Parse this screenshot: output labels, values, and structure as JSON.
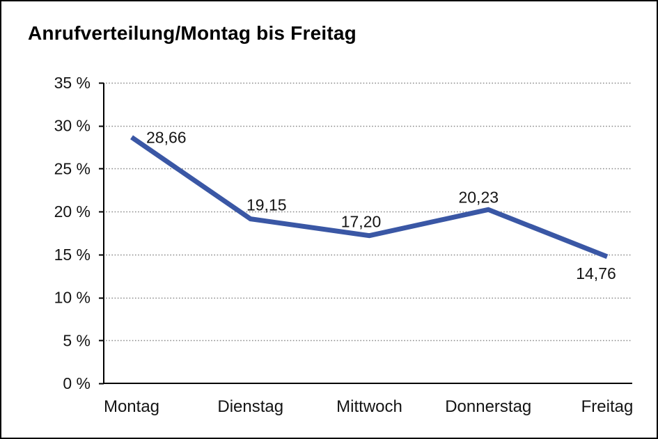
{
  "page": {
    "background": "#ffffff",
    "frame_border_color": "#000000"
  },
  "header": {
    "title": "Anrufverteilung/Montag bis Freitag"
  },
  "chart_data": {
    "type": "line",
    "title": "Anrufverteilung/Montag bis Freitag",
    "categories": [
      "Montag",
      "Dienstag",
      "Mittwoch",
      "Donnerstag",
      "Freitag"
    ],
    "values": [
      28.66,
      19.15,
      17.2,
      20.23,
      14.76
    ],
    "point_labels": [
      "28,66",
      "19,15",
      "17,20",
      "20,23",
      "14,76"
    ],
    "xlabel": "",
    "ylabel": "",
    "ylim": [
      0,
      35
    ],
    "ytick_step": 5,
    "ytick_labels": [
      "0 %",
      "5 %",
      "10 %",
      "15 %",
      "20 %",
      "25 %",
      "30 %",
      "35 %"
    ],
    "grid": "horizontal-dotted",
    "legend": "none",
    "colors": {
      "line": "#3A57A5",
      "axis": "#000000",
      "gridline": "#8a8a8a",
      "text": "#141414"
    },
    "label_placement": [
      "right",
      "above",
      "above",
      "above",
      "below"
    ],
    "label_offsets": {
      "dx": [
        21,
        23,
        -12,
        -14,
        -16
      ],
      "dy": [
        8,
        -12,
        -12,
        -10,
        32
      ],
      "anchor": [
        "start",
        "middle",
        "middle",
        "middle",
        "middle"
      ]
    }
  }
}
